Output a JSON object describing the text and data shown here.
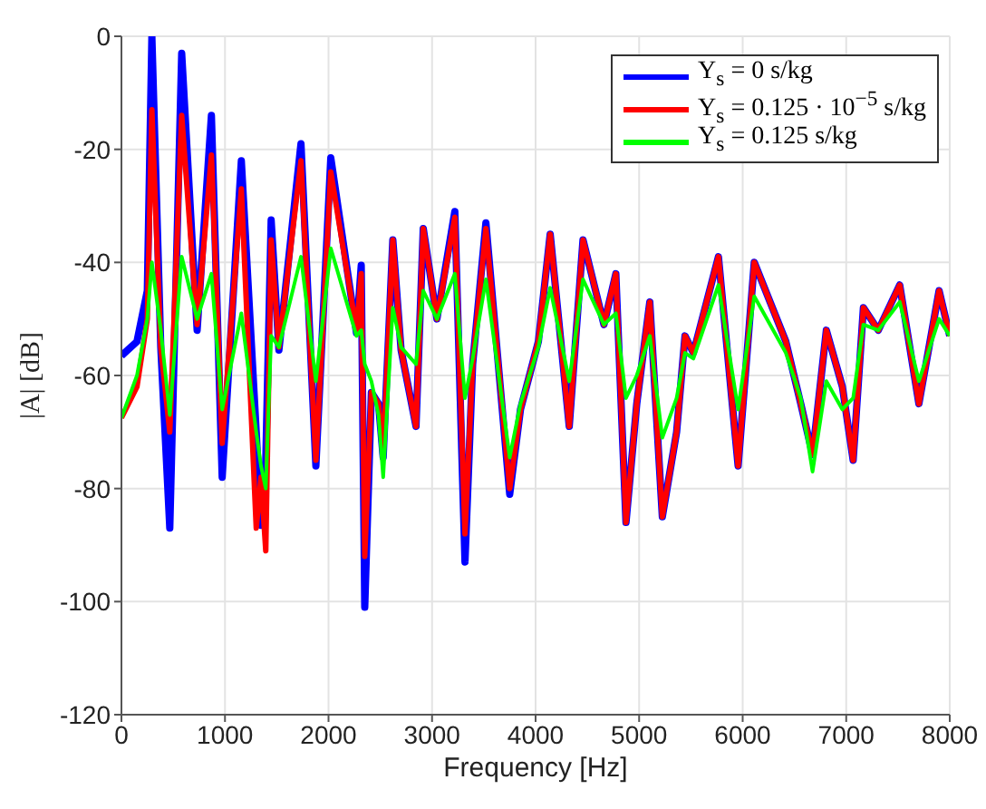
{
  "chart_data": {
    "type": "line",
    "xlabel": "Frequency [Hz]",
    "ylabel": "|A| [dB]",
    "x": [
      0,
      150,
      250,
      294,
      380,
      467,
      582,
      731,
      869,
      973,
      1158,
      1302,
      1348,
      1394,
      1446,
      1521,
      1734,
      1878,
      2022,
      2270,
      2316,
      2350,
      2414,
      2483,
      2528,
      2621,
      2701,
      2845,
      2915,
      3047,
      3220,
      3318,
      3392,
      3520,
      3750,
      3854,
      4027,
      4141,
      4325,
      4458,
      4660,
      4775,
      4873,
      4977,
      5103,
      5224,
      5362,
      5443,
      5524,
      5766,
      5956,
      6112,
      6417,
      6561,
      6675,
      6808,
      6963,
      7067,
      7166,
      7310,
      7517,
      7702,
      7897,
      8000
    ],
    "series": [
      {
        "name": "Y$_{s}$ = 0 s/kg",
        "color": "#0000ff",
        "values": [
          -56.5,
          -54,
          -45,
          0,
          -55,
          -87,
          -3,
          -52,
          -14,
          -78,
          -22,
          -70,
          -86.5,
          -75,
          -32.5,
          -55.5,
          -19,
          -76,
          -21.5,
          -52.5,
          -40.5,
          -101,
          -63,
          -65,
          -74.5,
          -36,
          -55.5,
          -69,
          -34,
          -50,
          -31,
          -93,
          -58,
          -33,
          -81,
          -66,
          -54,
          -35,
          -69,
          -36,
          -51,
          -42,
          -86,
          -65,
          -47,
          -85,
          -70,
          -53,
          -56,
          -39,
          -76,
          -40,
          -54,
          -65,
          -74,
          -52,
          -62,
          -75,
          -48,
          -52,
          -44,
          -65,
          -45,
          -53
        ]
      },
      {
        "name": "Y$_{s}$ = 0.125 · 10$^{−5}$ s/kg",
        "color": "#ff0000",
        "values": [
          -67.5,
          -62,
          -50,
          -13,
          -55,
          -70,
          -14,
          -51,
          -21,
          -72,
          -27,
          -87,
          -78,
          -91,
          -36,
          -55,
          -22,
          -75,
          -24,
          -52,
          -42,
          -92,
          -63,
          -65,
          -74,
          -36,
          -55.5,
          -69,
          -34,
          -50,
          -32,
          -88,
          -58,
          -34,
          -80,
          -66,
          -54,
          -35,
          -69,
          -36,
          -51,
          -42,
          -86,
          -65,
          -47,
          -85,
          -70,
          -53,
          -56,
          -39,
          -76,
          -40,
          -54,
          -65,
          -74,
          -52,
          -62,
          -75,
          -48,
          -52,
          -44,
          -65,
          -45,
          -53
        ]
      },
      {
        "name": "Y$_{s}$ = 0.125 s/kg",
        "color": "#00ff00",
        "values": [
          -67.5,
          -60,
          -50,
          -40,
          -52,
          -67,
          -39,
          -50,
          -42,
          -66,
          -49,
          -70,
          -76,
          -80,
          -53,
          -55,
          -39,
          -61,
          -37.5,
          -53,
          -52,
          -58,
          -61,
          -67,
          -78,
          -48,
          -55,
          -58,
          -45,
          -50,
          -42,
          -64,
          -57,
          -43,
          -74.5,
          -65,
          -55,
          -44.5,
          -61,
          -43,
          -51,
          -49,
          -64,
          -60,
          -53,
          -71,
          -64,
          -56,
          -57,
          -44,
          -66,
          -46,
          -56,
          -64,
          -77,
          -61,
          -66,
          -64,
          -51,
          -52,
          -47,
          -61,
          -50,
          -53
        ]
      }
    ],
    "xlim": [
      0,
      8000
    ],
    "xticks": [
      0,
      1000,
      2000,
      3000,
      4000,
      5000,
      6000,
      7000,
      8000
    ],
    "ylim": [
      -120,
      0
    ],
    "yticks": [
      -120,
      -100,
      -80,
      -60,
      -40,
      -20,
      0
    ],
    "grid": true,
    "legend": "top right",
    "marker": "none",
    "line_style": "solid"
  }
}
